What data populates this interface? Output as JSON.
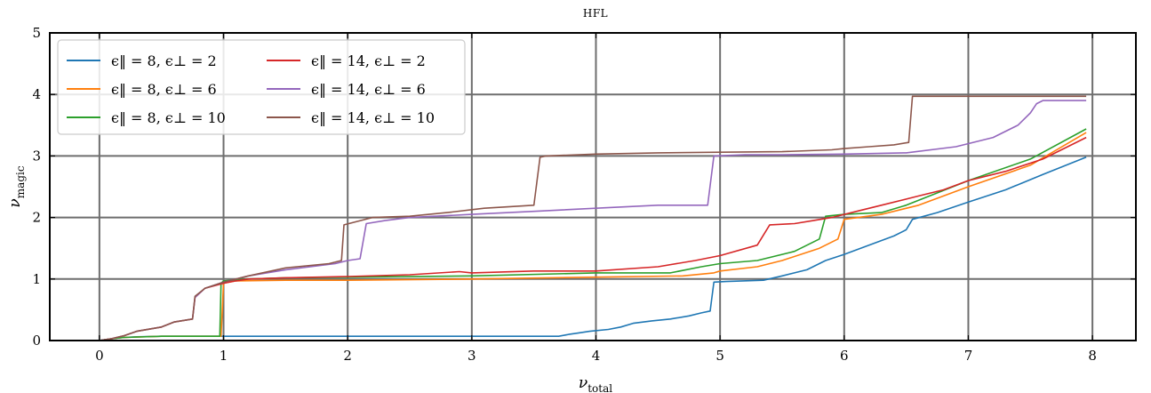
{
  "chart_data": {
    "type": "line",
    "title": "HFL",
    "xlabel_main": "ν",
    "xlabel_sub": "total",
    "ylabel_main": "ν",
    "ylabel_sub": "magic",
    "xlim": [
      -0.4,
      8.35
    ],
    "ylim": [
      0,
      5
    ],
    "xticks": [
      0,
      1,
      2,
      3,
      4,
      5,
      6,
      7,
      8
    ],
    "yticks": [
      0,
      1,
      2,
      3,
      4,
      5
    ],
    "grid": true,
    "legend_position": "top-left",
    "series": [
      {
        "name": "ε‖ = 8, ε⊥ = 2",
        "legend_main": "ϵ‖ = 8, ϵ⊥ = 2",
        "color": "#1f77b4",
        "x": [
          0,
          0.1,
          0.2,
          0.3,
          0.5,
          0.98,
          1.0,
          1.5,
          2,
          3,
          3.7,
          3.78,
          3.85,
          3.95,
          4.1,
          4.2,
          4.3,
          4.45,
          4.6,
          4.75,
          4.85,
          4.92,
          4.95,
          5.05,
          5.35,
          5.5,
          5.7,
          5.85,
          6.0,
          6.2,
          6.4,
          6.5,
          6.55,
          6.75,
          7.0,
          7.3,
          7.6,
          7.95
        ],
        "y": [
          0,
          0.03,
          0.05,
          0.06,
          0.07,
          0.07,
          0.07,
          0.07,
          0.07,
          0.07,
          0.07,
          0.1,
          0.12,
          0.15,
          0.18,
          0.22,
          0.28,
          0.32,
          0.35,
          0.4,
          0.45,
          0.48,
          0.95,
          0.96,
          0.98,
          1.05,
          1.15,
          1.3,
          1.4,
          1.55,
          1.7,
          1.8,
          1.97,
          2.08,
          2.25,
          2.45,
          2.7,
          2.98
        ]
      },
      {
        "name": "ε‖ = 8, ε⊥ = 6",
        "legend_main": "ϵ‖ = 8, ϵ⊥ = 6",
        "color": "#ff7f0e",
        "x": [
          0,
          0.1,
          0.2,
          0.5,
          0.98,
          1.0,
          1.1,
          1.5,
          2,
          3,
          4,
          4.7,
          4.95,
          5.0,
          5.3,
          5.5,
          5.8,
          5.95,
          6.0,
          6.3,
          6.6,
          7.0,
          7.5,
          7.95
        ],
        "y": [
          0,
          0.03,
          0.05,
          0.07,
          0.07,
          0.93,
          0.97,
          0.98,
          0.98,
          1.0,
          1.03,
          1.05,
          1.1,
          1.13,
          1.2,
          1.3,
          1.5,
          1.65,
          1.97,
          2.05,
          2.2,
          2.5,
          2.85,
          3.38
        ]
      },
      {
        "name": "ε‖ = 8, ε⊥ = 10",
        "legend_main": "ϵ‖ = 8, ϵ⊥ = 10",
        "color": "#2ca02c",
        "x": [
          0,
          0.1,
          0.2,
          0.5,
          0.97,
          0.98,
          1.0,
          1.2,
          1.5,
          2,
          3,
          4,
          4.6,
          4.85,
          5.0,
          5.3,
          5.6,
          5.8,
          5.85,
          6.0,
          6.3,
          6.5,
          7.0,
          7.5,
          7.95
        ],
        "y": [
          0,
          0.03,
          0.05,
          0.07,
          0.07,
          0.93,
          0.97,
          1.0,
          1.02,
          1.03,
          1.05,
          1.1,
          1.1,
          1.2,
          1.25,
          1.3,
          1.45,
          1.65,
          2.02,
          2.05,
          2.08,
          2.2,
          2.6,
          2.95,
          3.44
        ]
      },
      {
        "name": "ε‖ = 14, ε⊥ = 2",
        "legend_main": "ϵ‖ = 14, ϵ⊥ = 2",
        "color": "#d62728",
        "x": [
          0,
          0.1,
          0.2,
          0.3,
          0.5,
          0.6,
          0.75,
          0.77,
          0.85,
          1.0,
          1.1,
          1.2,
          1.5,
          2,
          2.5,
          2.9,
          3.0,
          3.5,
          4.0,
          4.5,
          4.8,
          5.0,
          5.3,
          5.4,
          5.6,
          5.75,
          5.9,
          6.1,
          6.3,
          6.6,
          6.8,
          7.0,
          7.3,
          7.6,
          7.95
        ],
        "y": [
          0,
          0.03,
          0.08,
          0.15,
          0.22,
          0.3,
          0.35,
          0.7,
          0.85,
          0.93,
          0.97,
          1.0,
          1.02,
          1.04,
          1.07,
          1.12,
          1.1,
          1.13,
          1.13,
          1.2,
          1.3,
          1.38,
          1.55,
          1.88,
          1.9,
          1.95,
          2.0,
          2.1,
          2.2,
          2.35,
          2.45,
          2.6,
          2.75,
          2.95,
          3.3
        ]
      },
      {
        "name": "ε‖ = 14, ε⊥ = 6",
        "legend_main": "ϵ‖ = 14, ϵ⊥ = 6",
        "color": "#9467bd",
        "x": [
          0,
          0.1,
          0.2,
          0.3,
          0.5,
          0.6,
          0.75,
          0.77,
          0.85,
          1.0,
          1.2,
          1.5,
          1.9,
          2.0,
          2.1,
          2.15,
          2.3,
          2.5,
          3.0,
          3.5,
          4.0,
          4.5,
          4.9,
          4.95,
          5.2,
          5.5,
          6.0,
          6.5,
          6.9,
          7.2,
          7.4,
          7.5,
          7.55,
          7.6,
          7.95
        ],
        "y": [
          0,
          0.03,
          0.08,
          0.15,
          0.22,
          0.3,
          0.35,
          0.7,
          0.85,
          0.95,
          1.05,
          1.15,
          1.25,
          1.3,
          1.33,
          1.9,
          1.95,
          2.0,
          2.05,
          2.1,
          2.15,
          2.2,
          2.2,
          3.0,
          3.02,
          3.02,
          3.03,
          3.05,
          3.15,
          3.3,
          3.5,
          3.7,
          3.85,
          3.9,
          3.9
        ]
      },
      {
        "name": "ε‖ = 14, ε⊥ = 10",
        "legend_main": "ϵ‖ = 14, ϵ⊥ = 10",
        "color": "#8c564b",
        "x": [
          0,
          0.1,
          0.2,
          0.3,
          0.5,
          0.6,
          0.75,
          0.77,
          0.85,
          1.0,
          1.2,
          1.5,
          1.85,
          1.95,
          1.97,
          2.2,
          2.5,
          2.8,
          3.1,
          3.5,
          3.55,
          3.6,
          4.0,
          4.5,
          5.0,
          5.5,
          5.9,
          6.0,
          6.2,
          6.4,
          6.52,
          6.55,
          7.0,
          7.5,
          7.95
        ],
        "y": [
          0,
          0.03,
          0.08,
          0.15,
          0.22,
          0.3,
          0.35,
          0.72,
          0.85,
          0.95,
          1.05,
          1.18,
          1.25,
          1.3,
          1.88,
          2.0,
          2.02,
          2.08,
          2.15,
          2.2,
          2.98,
          3.0,
          3.03,
          3.05,
          3.06,
          3.07,
          3.1,
          3.12,
          3.15,
          3.18,
          3.22,
          3.97,
          3.97,
          3.97,
          3.97
        ]
      }
    ]
  }
}
